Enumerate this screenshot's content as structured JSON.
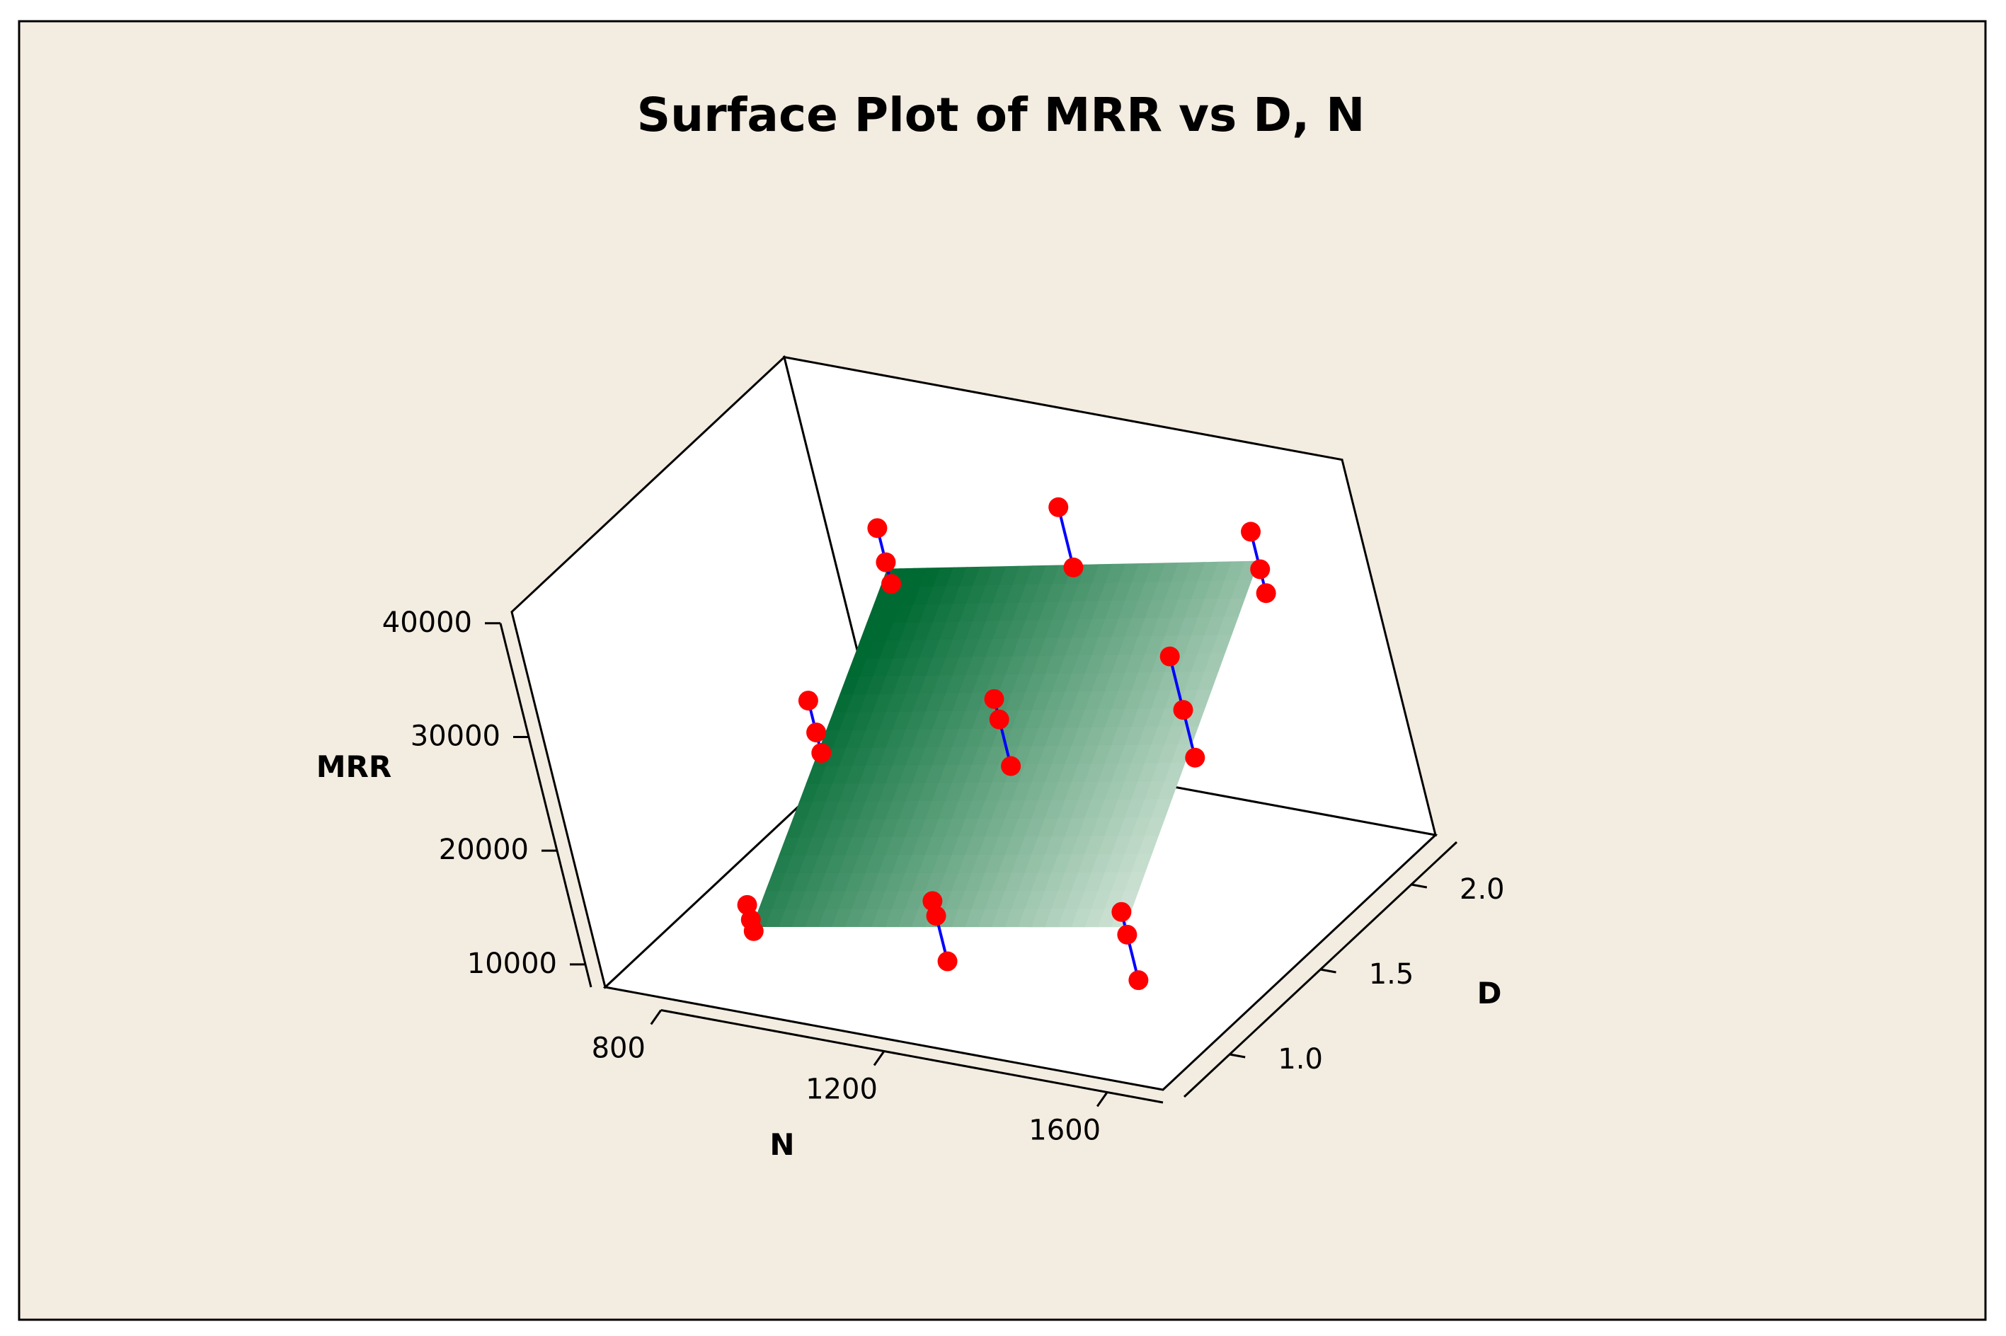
{
  "chart_data": {
    "type": "surface",
    "title": "Surface Plot of MRR vs D, N",
    "xlabel": "N",
    "ylabel": "D",
    "zlabel": "MRR",
    "x_ticks": [
      "800",
      "1200",
      "1600"
    ],
    "y_ticks": [
      "1.0",
      "1.5",
      "2.0"
    ],
    "z_ticks": [
      "10000",
      "20000",
      "30000",
      "40000"
    ],
    "xlim": [
      700,
      1700
    ],
    "ylim": [
      0.75,
      2.25
    ],
    "zlim": [
      8000,
      41000
    ],
    "surface": {
      "x_range": [
        900,
        1600
      ],
      "y_range": [
        1.0,
        2.0
      ],
      "corners": [
        {
          "N": 900,
          "D": 1.0,
          "MRR": 11400
        },
        {
          "N": 1600,
          "D": 1.0,
          "MRR": 17700
        },
        {
          "N": 900,
          "D": 2.0,
          "MRR": 27900
        },
        {
          "N": 1600,
          "D": 2.0,
          "MRR": 34900
        }
      ],
      "colors": [
        "#006a33",
        "#d3e5d8"
      ]
    },
    "points": [
      {
        "N": 900,
        "D": 1.0,
        "MRR": 13300
      },
      {
        "N": 900,
        "D": 1.0,
        "MRR": 12000
      },
      {
        "N": 900,
        "D": 1.0,
        "MRR": 11000
      },
      {
        "N": 1250,
        "D": 1.0,
        "MRR": 16800
      },
      {
        "N": 1250,
        "D": 1.0,
        "MRR": 15500
      },
      {
        "N": 1250,
        "D": 1.0,
        "MRR": 11500
      },
      {
        "N": 1600,
        "D": 1.0,
        "MRR": 19000
      },
      {
        "N": 1600,
        "D": 1.0,
        "MRR": 17000
      },
      {
        "N": 1600,
        "D": 1.0,
        "MRR": 13000
      },
      {
        "N": 900,
        "D": 1.5,
        "MRR": 23800
      },
      {
        "N": 900,
        "D": 1.5,
        "MRR": 21000
      },
      {
        "N": 900,
        "D": 1.5,
        "MRR": 19200
      },
      {
        "N": 1250,
        "D": 1.5,
        "MRR": 27100
      },
      {
        "N": 1250,
        "D": 1.5,
        "MRR": 25300
      },
      {
        "N": 1250,
        "D": 1.5,
        "MRR": 21200
      },
      {
        "N": 1600,
        "D": 1.5,
        "MRR": 34000
      },
      {
        "N": 1600,
        "D": 1.5,
        "MRR": 29300
      },
      {
        "N": 1600,
        "D": 1.5,
        "MRR": 25100
      },
      {
        "N": 900,
        "D": 2.0,
        "MRR": 31500
      },
      {
        "N": 900,
        "D": 2.0,
        "MRR": 28500
      },
      {
        "N": 900,
        "D": 2.0,
        "MRR": 26600
      },
      {
        "N": 1250,
        "D": 2.0,
        "MRR": 36500
      },
      {
        "N": 1250,
        "D": 2.0,
        "MRR": 31200
      },
      {
        "N": 1600,
        "D": 2.0,
        "MRR": 37500
      },
      {
        "N": 1600,
        "D": 2.0,
        "MRR": 34200
      },
      {
        "N": 1600,
        "D": 2.0,
        "MRR": 32100
      }
    ],
    "point_color": "#ff0000",
    "stem_color": "#0000ff",
    "background_color": "#f3ece0",
    "frame_color": "#000000",
    "grid": false,
    "legend": "none"
  }
}
